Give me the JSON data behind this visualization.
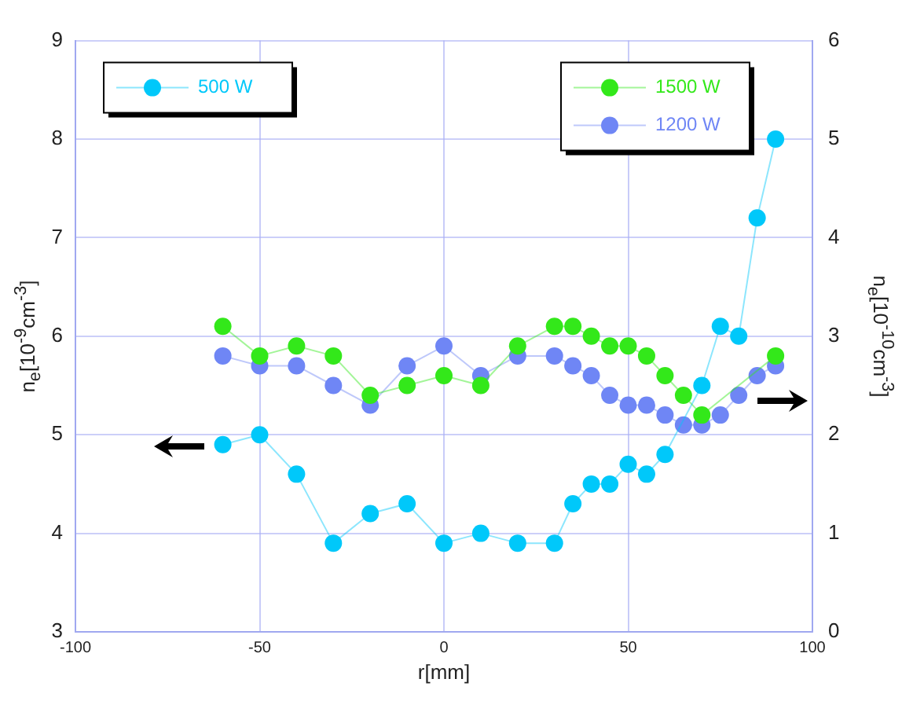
{
  "chart_data": {
    "type": "line",
    "xlabel": "r[mm]",
    "ylabel": "n$_{e}$[10$^{-9}$cm$^{-3}$]",
    "y2label": "n$_{e}$[10$^{-10}$cm$^{-3}$]",
    "xlim": [
      -100,
      100
    ],
    "xticks": [
      -100,
      -50,
      0,
      50,
      100
    ],
    "ylim": [
      3,
      9
    ],
    "yticks": [
      3,
      4,
      5,
      6,
      7,
      8,
      9
    ],
    "y2lim": [
      0,
      6
    ],
    "y2ticks": [
      0,
      1,
      2,
      3,
      4,
      5,
      6
    ],
    "grid": true,
    "legend": "top",
    "marker": "circle",
    "line_style": "solid",
    "series": [
      {
        "name": "500 W",
        "color": "#00c8fa",
        "axis": "y",
        "x": [
          -60,
          -50,
          -40,
          -30,
          -20,
          -10,
          0,
          10,
          20,
          30,
          35,
          40,
          45,
          50,
          55,
          60,
          70,
          75,
          80,
          85,
          90
        ],
        "values": [
          4.9,
          5.0,
          4.6,
          3.9,
          4.2,
          4.3,
          3.9,
          4.0,
          3.9,
          3.9,
          4.3,
          4.5,
          4.5,
          4.7,
          4.6,
          4.8,
          5.5,
          6.1,
          6.0,
          7.2,
          8.0
        ]
      },
      {
        "name": "1500 W",
        "color": "#33e81a",
        "axis": "y2",
        "x": [
          -60,
          -50,
          -40,
          -30,
          -20,
          -10,
          0,
          10,
          20,
          30,
          35,
          40,
          45,
          50,
          55,
          60,
          65,
          70,
          90
        ],
        "values": [
          3.1,
          2.8,
          2.9,
          2.8,
          2.4,
          2.5,
          2.6,
          2.5,
          2.9,
          3.1,
          3.1,
          3.0,
          2.9,
          2.9,
          2.8,
          2.6,
          2.4,
          2.2,
          2.8
        ]
      },
      {
        "name": "1200 W",
        "color": "#6f86f5",
        "axis": "y2",
        "x": [
          -60,
          -50,
          -40,
          -30,
          -20,
          -10,
          0,
          10,
          20,
          30,
          35,
          40,
          45,
          50,
          55,
          60,
          65,
          70,
          75,
          80,
          85,
          90
        ],
        "values": [
          2.8,
          2.7,
          2.7,
          2.5,
          2.3,
          2.7,
          2.9,
          2.6,
          2.8,
          2.8,
          2.7,
          2.6,
          2.4,
          2.3,
          2.3,
          2.2,
          2.1,
          2.1,
          2.2,
          2.4,
          2.6,
          2.7
        ]
      }
    ]
  }
}
